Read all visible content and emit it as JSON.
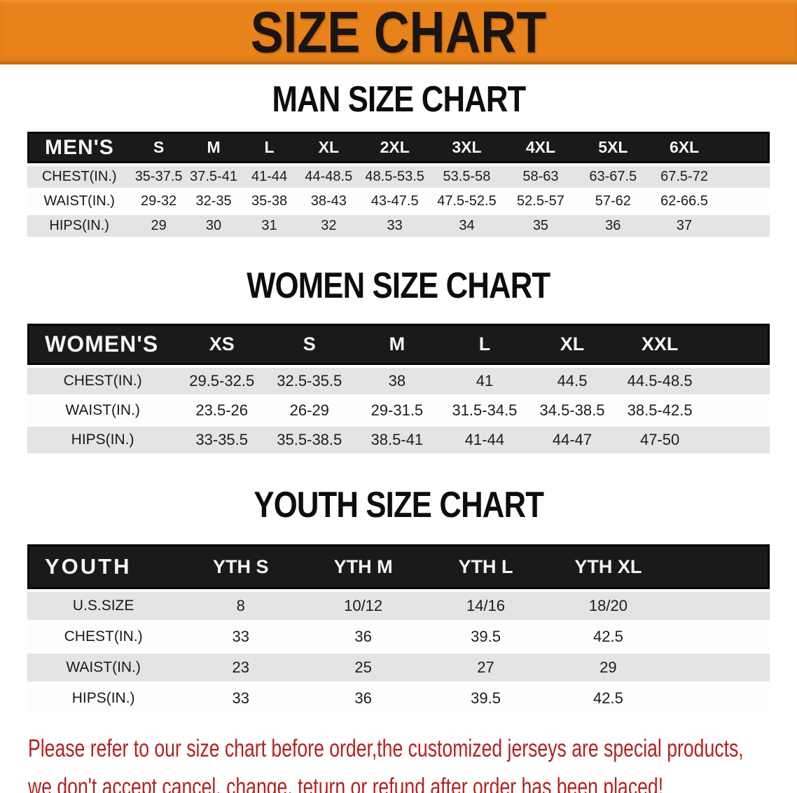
{
  "banner": {
    "title": "SIZE CHART"
  },
  "colors": {
    "banner_bg": "#E8821A",
    "header_bar": "#1a1a1a",
    "row_alt": "#E4E4E6",
    "disclaimer_red": "#B22222"
  },
  "sections": {
    "men": {
      "heading": "MAN SIZE CHART",
      "table": {
        "label": "MEN'S",
        "columns": [
          "S",
          "M",
          "L",
          "XL",
          "2XL",
          "3XL",
          "4XL",
          "5XL",
          "6XL"
        ],
        "rows": [
          {
            "label": "CHEST(IN.)",
            "values": [
              "35-37.5",
              "37.5-41",
              "41-44",
              "44-48.5",
              "48.5-53.5",
              "53.5-58",
              "58-63",
              "63-67.5",
              "67.5-72"
            ]
          },
          {
            "label": "WAIST(IN.)",
            "values": [
              "29-32",
              "32-35",
              "35-38",
              "38-43",
              "43-47.5",
              "47.5-52.5",
              "52.5-57",
              "57-62",
              "62-66.5"
            ]
          },
          {
            "label": "HIPS(IN.)",
            "values": [
              "29",
              "30",
              "31",
              "32",
              "33",
              "34",
              "35",
              "36",
              "37"
            ]
          }
        ]
      }
    },
    "women": {
      "heading": "WOMEN SIZE CHART",
      "table": {
        "label": "WOMEN'S",
        "columns": [
          "XS",
          "S",
          "M",
          "L",
          "XL",
          "XXL"
        ],
        "rows": [
          {
            "label": "CHEST(IN.)",
            "values": [
              "29.5-32.5",
              "32.5-35.5",
              "38",
              "41",
              "44.5",
              "44.5-48.5"
            ]
          },
          {
            "label": "WAIST(IN.)",
            "values": [
              "23.5-26",
              "26-29",
              "29-31.5",
              "31.5-34.5",
              "34.5-38.5",
              "38.5-42.5"
            ]
          },
          {
            "label": "HIPS(IN.)",
            "values": [
              "33-35.5",
              "35.5-38.5",
              "38.5-41",
              "41-44",
              "44-47",
              "47-50"
            ]
          }
        ]
      }
    },
    "youth": {
      "heading": "YOUTH SIZE CHART",
      "table": {
        "label": "YOUTH",
        "columns": [
          "YTH S",
          "YTH M",
          "YTH L",
          "YTH XL"
        ],
        "rows": [
          {
            "label": "U.S.SIZE",
            "values": [
              "8",
              "10/12",
              "14/16",
              "18/20"
            ]
          },
          {
            "label": "CHEST(IN.)",
            "values": [
              "33",
              "36",
              "39.5",
              "42.5"
            ]
          },
          {
            "label": "WAIST(IN.)",
            "values": [
              "23",
              "25",
              "27",
              "29"
            ]
          },
          {
            "label": "HIPS(IN.)",
            "values": [
              "33",
              "36",
              "39.5",
              "42.5"
            ]
          }
        ]
      }
    }
  },
  "disclaimer": {
    "line1": "Please refer to our size chart before order,the customized jerseys are special products,",
    "line2": "we don't accept cancel, change, teturn or refund after order has been placed!"
  }
}
